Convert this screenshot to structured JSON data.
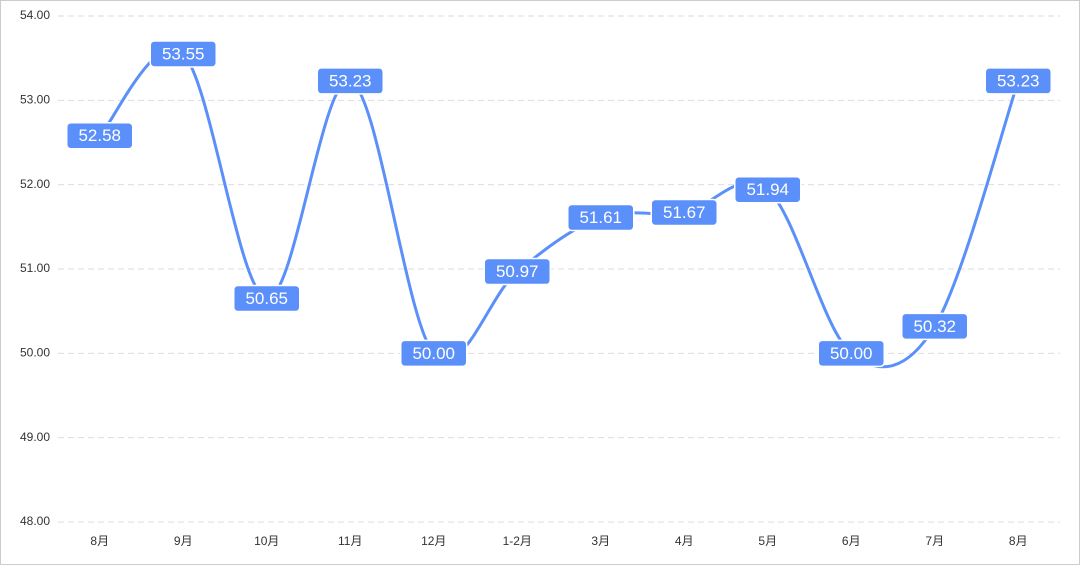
{
  "chart_data": {
    "type": "line",
    "categories": [
      "8月",
      "9月",
      "10月",
      "11月",
      "12月",
      "1-2月",
      "3月",
      "4月",
      "5月",
      "6月",
      "7月",
      "8月"
    ],
    "series": [
      {
        "color": "#5b8ff9",
        "values": [
          52.58,
          53.55,
          50.65,
          53.23,
          50.0,
          50.97,
          51.61,
          51.67,
          51.94,
          50.0,
          50.32,
          53.23
        ],
        "value_labels": [
          "52.58",
          "53.55",
          "50.65",
          "53.23",
          "50.00",
          "50.97",
          "51.61",
          "51.67",
          "51.94",
          "50.00",
          "50.32",
          "53.23"
        ]
      }
    ],
    "ylim": [
      48,
      54
    ],
    "yticks": [
      {
        "value": 48,
        "label": "48.00"
      },
      {
        "value": 49,
        "label": "49.00"
      },
      {
        "value": 50,
        "label": "50.00"
      },
      {
        "value": 51,
        "label": "51.00"
      },
      {
        "value": 52,
        "label": "52.00"
      },
      {
        "value": 53,
        "label": "53.00"
      },
      {
        "value": 54,
        "label": "54.00"
      }
    ],
    "grid": true,
    "smooth": true
  }
}
